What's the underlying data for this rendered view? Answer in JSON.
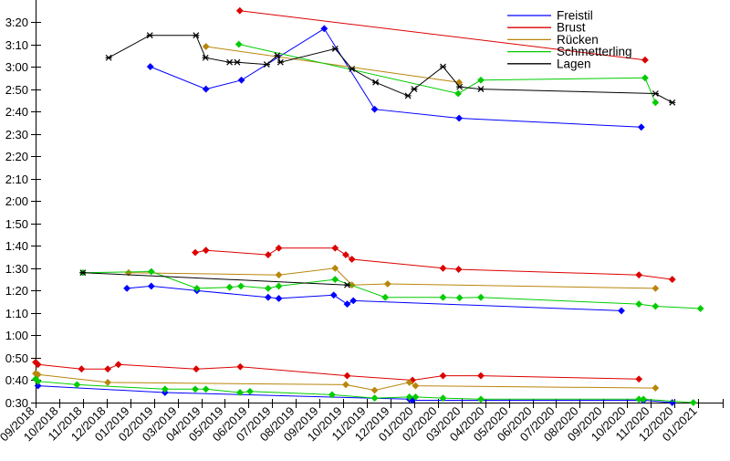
{
  "chart_data": {
    "type": "line",
    "title": "",
    "xlabel": "",
    "ylabel": "",
    "grid": false,
    "legend_position": "top-right",
    "y_ticks": [
      "0:30",
      "0:40",
      "0:50",
      "1:00",
      "1:10",
      "1:20",
      "1:30",
      "1:40",
      "1:50",
      "2:00",
      "2:10",
      "2:20",
      "2:30",
      "2:40",
      "2:50",
      "3:00",
      "3:10",
      "3:20"
    ],
    "x_ticks": [
      "09/2018",
      "10/2018",
      "11/2018",
      "12/2018",
      "01/2019",
      "02/2019",
      "03/2019",
      "04/2019",
      "05/2019",
      "06/2019",
      "07/2019",
      "08/2019",
      "09/2019",
      "10/2019",
      "11/2019",
      "12/2019",
      "01/2020",
      "02/2020",
      "03/2020",
      "04/2020",
      "05/2020",
      "06/2020",
      "07/2020",
      "08/2020",
      "09/2020",
      "10/2020",
      "11/2020",
      "12/2020",
      "01/2021"
    ],
    "x_unit_note": "x values below are fractional month offsets from the 09/2018 tick",
    "legend": [
      {
        "label": "Freistil",
        "color": "#0000ff"
      },
      {
        "label": "Brust",
        "color": "#dd0000"
      },
      {
        "label": "Rücken",
        "color": "#b8860b"
      },
      {
        "label": "Schmetterling",
        "color": "#00cc00"
      },
      {
        "label": "Lagen",
        "color": "#000000"
      }
    ],
    "series": [
      {
        "stroke": "Freistil",
        "band": "upper",
        "color": "#0000ff",
        "marker": "diamond",
        "points": [
          [
            4.85,
            "3:00"
          ],
          [
            7.2,
            "2:50"
          ],
          [
            8.7,
            "2:54"
          ],
          [
            12.2,
            "3:17"
          ],
          [
            14.33,
            "2:41"
          ],
          [
            17.9,
            "2:37"
          ],
          [
            25.6,
            "2:33"
          ]
        ]
      },
      {
        "stroke": "Brust",
        "band": "upper",
        "color": "#dd0000",
        "marker": "diamond",
        "points": [
          [
            8.63,
            "3:25"
          ],
          [
            25.76,
            "3:03"
          ]
        ]
      },
      {
        "stroke": "Rücken",
        "band": "upper",
        "color": "#b8860b",
        "marker": "diamond",
        "points": [
          [
            7.2,
            "3:09"
          ],
          [
            17.9,
            "2:53"
          ]
        ]
      },
      {
        "stroke": "Schmetterling",
        "band": "upper",
        "color": "#00cc00",
        "marker": "diamond",
        "points": [
          [
            8.59,
            "3:10"
          ],
          [
            17.86,
            "2:48"
          ],
          [
            18.82,
            "2:54"
          ],
          [
            25.76,
            "2:55"
          ],
          [
            26.2,
            "2:44"
          ]
        ]
      },
      {
        "stroke": "Lagen",
        "band": "upper",
        "color": "#000000",
        "marker": "x",
        "points": [
          [
            3.09,
            "3:04"
          ],
          [
            4.83,
            "3:14"
          ],
          [
            6.78,
            "3:14"
          ],
          [
            7.18,
            "3:04"
          ],
          [
            8.2,
            "3:02"
          ],
          [
            8.52,
            "3:02"
          ],
          [
            9.77,
            "3:01"
          ],
          [
            10.22,
            "3:05"
          ],
          [
            10.35,
            "3:02"
          ],
          [
            12.66,
            "3:08"
          ],
          [
            13.37,
            "2:59"
          ],
          [
            14.37,
            "2:53"
          ],
          [
            15.74,
            "2:47"
          ],
          [
            16.0,
            "2:50"
          ],
          [
            17.22,
            "3:00"
          ],
          [
            17.92,
            "2:51"
          ],
          [
            18.82,
            "2:50"
          ],
          [
            26.2,
            "2:48"
          ],
          [
            26.91,
            "2:44"
          ]
        ]
      },
      {
        "stroke": "Freistil",
        "band": "middle",
        "color": "#0000ff",
        "marker": "diamond",
        "points": [
          [
            3.86,
            "1:21"
          ],
          [
            4.89,
            "1:22"
          ],
          [
            6.82,
            "1:20"
          ],
          [
            9.83,
            "1:17"
          ],
          [
            10.28,
            "1:16.5"
          ],
          [
            12.6,
            "1:18"
          ],
          [
            13.17,
            "1:14"
          ],
          [
            13.43,
            "1:15.5"
          ],
          [
            24.76,
            "1:11"
          ]
        ]
      },
      {
        "stroke": "Brust",
        "band": "middle",
        "color": "#dd0000",
        "marker": "diamond",
        "points": [
          [
            6.75,
            "1:37"
          ],
          [
            7.2,
            "1:38"
          ],
          [
            9.83,
            "1:36"
          ],
          [
            10.28,
            "1:39"
          ],
          [
            12.66,
            "1:39"
          ],
          [
            13.11,
            "1:36"
          ],
          [
            13.37,
            "1:34"
          ],
          [
            17.22,
            "1:30"
          ],
          [
            17.88,
            "1:29.5"
          ],
          [
            25.5,
            "1:27"
          ],
          [
            26.91,
            "1:25"
          ]
        ]
      },
      {
        "stroke": "Rücken",
        "band": "middle",
        "color": "#b8860b",
        "marker": "diamond",
        "points": [
          [
            3.93,
            "1:28"
          ],
          [
            10.28,
            "1:27"
          ],
          [
            12.66,
            "1:30"
          ],
          [
            13.37,
            "1:22.5"
          ],
          [
            14.88,
            "1:23"
          ],
          [
            26.2,
            "1:21"
          ]
        ]
      },
      {
        "stroke": "Schmetterling",
        "band": "middle",
        "color": "#00cc00",
        "marker": "diamond",
        "points": [
          [
            2.0,
            "1:28"
          ],
          [
            4.89,
            "1:28.5"
          ],
          [
            6.82,
            "1:21"
          ],
          [
            8.2,
            "1:21.5"
          ],
          [
            8.68,
            "1:22"
          ],
          [
            9.83,
            "1:21"
          ],
          [
            10.28,
            "1:22"
          ],
          [
            12.66,
            "1:25"
          ],
          [
            14.78,
            "1:17"
          ],
          [
            17.22,
            "1:17"
          ],
          [
            17.92,
            "1:16.8"
          ],
          [
            18.82,
            "1:17"
          ],
          [
            25.5,
            "1:14"
          ],
          [
            26.2,
            "1:13"
          ],
          [
            28.1,
            "1:12"
          ]
        ]
      },
      {
        "stroke": "Lagen",
        "band": "middle",
        "color": "#000000",
        "marker": "x",
        "points": [
          [
            2.0,
            "1:28"
          ],
          [
            13.17,
            "1:22.5"
          ]
        ]
      },
      {
        "stroke": "Freistil",
        "band": "lower",
        "color": "#0000ff",
        "marker": "diamond",
        "points": [
          [
            0.1,
            "0:37.5"
          ],
          [
            5.47,
            "0:34.5"
          ],
          [
            15.8,
            "0:31.5"
          ],
          [
            15.93,
            "0:31"
          ],
          [
            25.69,
            "0:31"
          ],
          [
            26.91,
            "0:30"
          ]
        ]
      },
      {
        "stroke": "Brust",
        "band": "lower",
        "color": "#dd0000",
        "marker": "diamond",
        "points": [
          [
            0.0,
            "0:48"
          ],
          [
            0.1,
            "0:47"
          ],
          [
            1.94,
            "0:45"
          ],
          [
            3.05,
            "0:45"
          ],
          [
            3.5,
            "0:47"
          ],
          [
            6.79,
            "0:45"
          ],
          [
            8.65,
            "0:46"
          ],
          [
            13.17,
            "0:42"
          ],
          [
            15.93,
            "0:40"
          ],
          [
            17.22,
            "0:42"
          ],
          [
            18.82,
            "0:42"
          ],
          [
            25.5,
            "0:40.5"
          ]
        ]
      },
      {
        "stroke": "Rücken",
        "band": "lower",
        "color": "#b8860b",
        "marker": "diamond",
        "points": [
          [
            0.0,
            "0:43"
          ],
          [
            0.1,
            "0:42.5"
          ],
          [
            3.05,
            "0:39"
          ],
          [
            13.11,
            "0:38"
          ],
          [
            14.33,
            "0:35.5"
          ],
          [
            15.8,
            "0:39"
          ],
          [
            16.06,
            "0:37.5"
          ],
          [
            26.2,
            "0:36.5"
          ]
        ]
      },
      {
        "stroke": "Schmetterling",
        "band": "lower",
        "color": "#00cc00",
        "marker": "diamond",
        "points": [
          [
            0.0,
            "0:40.5"
          ],
          [
            0.1,
            "0:39.5"
          ],
          [
            1.75,
            "0:38"
          ],
          [
            5.47,
            "0:36"
          ],
          [
            6.75,
            "0:36"
          ],
          [
            7.2,
            "0:36"
          ],
          [
            8.64,
            "0:34.5"
          ],
          [
            9.06,
            "0:35"
          ],
          [
            12.53,
            "0:33.5"
          ],
          [
            14.33,
            "0:32"
          ],
          [
            15.8,
            "0:32.5"
          ],
          [
            16.06,
            "0:32.5"
          ],
          [
            17.22,
            "0:32"
          ],
          [
            18.82,
            "0:31.5"
          ],
          [
            25.5,
            "0:31.5"
          ],
          [
            25.69,
            "0:31.5"
          ],
          [
            27.8,
            "0:30"
          ]
        ]
      }
    ],
    "axis_ranges": {
      "y_min_label": "0:30",
      "y_max_label": "3:20",
      "x_min_label": "09/2018",
      "x_max_label": "01/2021"
    }
  }
}
